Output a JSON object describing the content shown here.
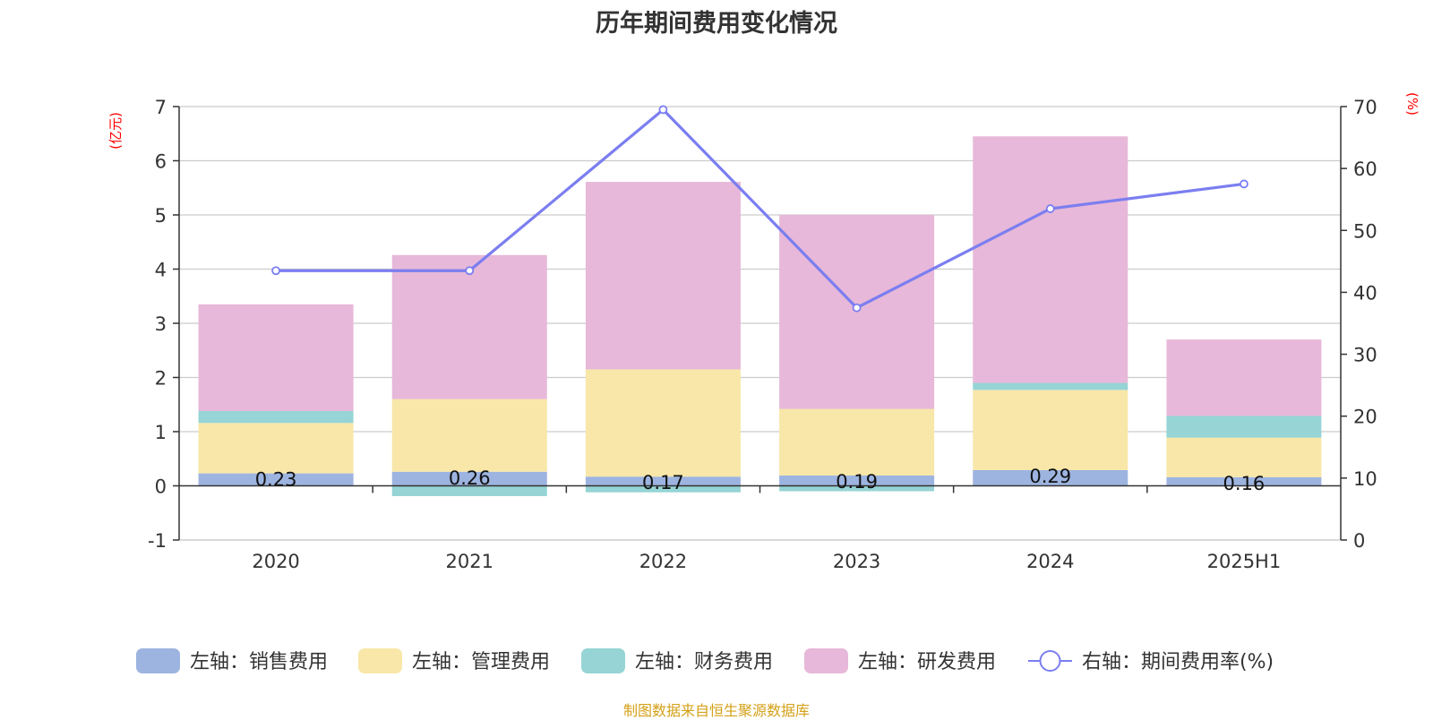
{
  "chart_data": {
    "type": "bar",
    "title": "历年期间费用变化情况",
    "categories": [
      "2020",
      "2021",
      "2022",
      "2023",
      "2024",
      "2025H1"
    ],
    "left_axis": {
      "unit": "(亿元)",
      "min": -1,
      "max": 7,
      "ticks": [
        "-1",
        "0",
        "1",
        "2",
        "3",
        "4",
        "5",
        "6",
        "7"
      ]
    },
    "right_axis": {
      "unit": "(%)",
      "min": 0,
      "max": 70,
      "ticks": [
        "0",
        "10",
        "20",
        "30",
        "40",
        "50",
        "60",
        "70"
      ]
    },
    "unit_color": "#ff0000",
    "grid": true,
    "legend_position": "bottom",
    "series": [
      {
        "name": "左轴：销售费用",
        "type": "bar",
        "axis": "left",
        "color": "#9db4e0",
        "values": [
          0.23,
          0.26,
          0.17,
          0.19,
          0.29,
          0.16
        ],
        "labels": [
          "0.23",
          "0.26",
          "0.17",
          "0.19",
          "0.29",
          "0.16"
        ]
      },
      {
        "name": "左轴：管理费用",
        "type": "bar",
        "axis": "left",
        "color": "#f8e7a8",
        "values": [
          0.93,
          1.34,
          1.98,
          1.23,
          1.48,
          0.73
        ]
      },
      {
        "name": "左轴：财务费用",
        "type": "bar",
        "axis": "left",
        "color": "#96d4d5",
        "values": [
          0.22,
          -0.19,
          -0.12,
          -0.1,
          0.13,
          0.4
        ]
      },
      {
        "name": "左轴：研发费用",
        "type": "bar",
        "axis": "left",
        "color": "#e7b8d9",
        "values": [
          1.97,
          2.66,
          3.46,
          3.58,
          4.55,
          1.41
        ]
      },
      {
        "name": "右轴：期间费用率(%)",
        "type": "line",
        "axis": "right",
        "color": "#7b7ef0",
        "values": [
          43.5,
          43.5,
          69.5,
          37.5,
          53.5,
          57.5
        ]
      }
    ]
  },
  "footer": {
    "source": "制图数据来自恒生聚源数据库",
    "color": "#d4a017"
  }
}
